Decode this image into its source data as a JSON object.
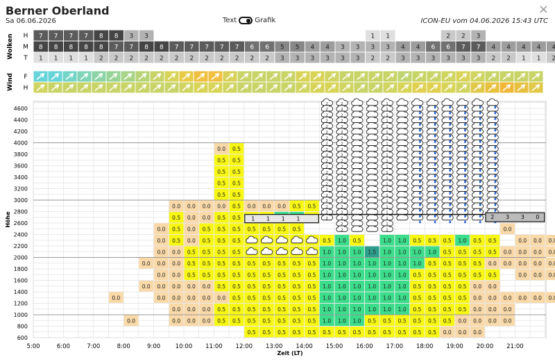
{
  "header": {
    "title": "Berner Oberland",
    "date": "Sa 06.06.2026",
    "toggle_text": "Text",
    "toggle_grafik": "Grafik",
    "model": "ICON-EU vom 04.06.2026 15:43 UTC",
    "close": "×"
  },
  "wolken": {
    "label": "Wolken",
    "rows": [
      {
        "label": "H",
        "values": [
          "7",
          "7",
          "7",
          "7",
          "8",
          "8",
          "3",
          "3",
          "",
          "",
          "",
          "",
          "",
          "",
          "",
          "",
          "",
          "",
          "",
          "",
          "",
          "",
          "1",
          "1",
          "",
          "",
          "",
          "2",
          "2",
          "3",
          "",
          "",
          "",
          "",
          "",
          "",
          "",
          "",
          ""
        ]
      },
      {
        "label": "M",
        "values": [
          "8",
          "8",
          "8",
          "8",
          "8",
          "7",
          "7",
          "8",
          "8",
          "7",
          "7",
          "7",
          "7",
          "7",
          "6",
          "6",
          "5",
          "5",
          "4",
          "4",
          "3",
          "3",
          "3",
          "3",
          "4",
          "4",
          "6",
          "6",
          "7",
          "7",
          "4",
          "4",
          "4",
          "4",
          "4",
          "",
          "",
          "",
          ""
        ]
      },
      {
        "label": "T",
        "values": [
          "1",
          "1",
          "1",
          "1",
          "2",
          "2",
          "2",
          "2",
          "2",
          "2",
          "2",
          "2",
          "2",
          "2",
          "2",
          "2",
          "3",
          "3",
          "3",
          "3",
          "3",
          "3",
          "2",
          "2",
          "3",
          "3",
          "3",
          "3",
          "3",
          "3",
          "2",
          "2",
          "1",
          "1",
          "2",
          "2",
          "",
          "",
          ""
        ]
      }
    ]
  },
  "wind": {
    "label": "Wind",
    "rows": [
      "F",
      "H"
    ]
  },
  "chart": {
    "y_axis_label": "Höhe",
    "x_axis_label": "Zeit (LT)",
    "y_ticks": [
      "600",
      "800",
      "1000",
      "1200",
      "1400",
      "1600",
      "1800",
      "2000",
      "2200",
      "2400",
      "2600",
      "2800",
      "3000",
      "3200",
      "3400",
      "3600",
      "3800",
      "4000",
      "4200",
      "4400",
      "4600"
    ],
    "x_ticks": [
      "5:00",
      "6:00",
      "7:00",
      "8:00",
      "9:00",
      "10:00",
      "11:00",
      "12:00",
      "13:00",
      "14:00",
      "15:00",
      "16:00",
      "17:00",
      "18:00",
      "19:00",
      "20:00",
      "21:00"
    ],
    "cloud_labels": {
      "c1": "1",
      "c2": "2",
      "c3": "3",
      "c0": "0"
    },
    "colors": {
      "v0": "#f9d9a8",
      "v5": "#f7f713",
      "v10": "#3bdc8a",
      "v15": "#2e9e8c",
      "cloud": "#e8e8e8"
    }
  }
}
